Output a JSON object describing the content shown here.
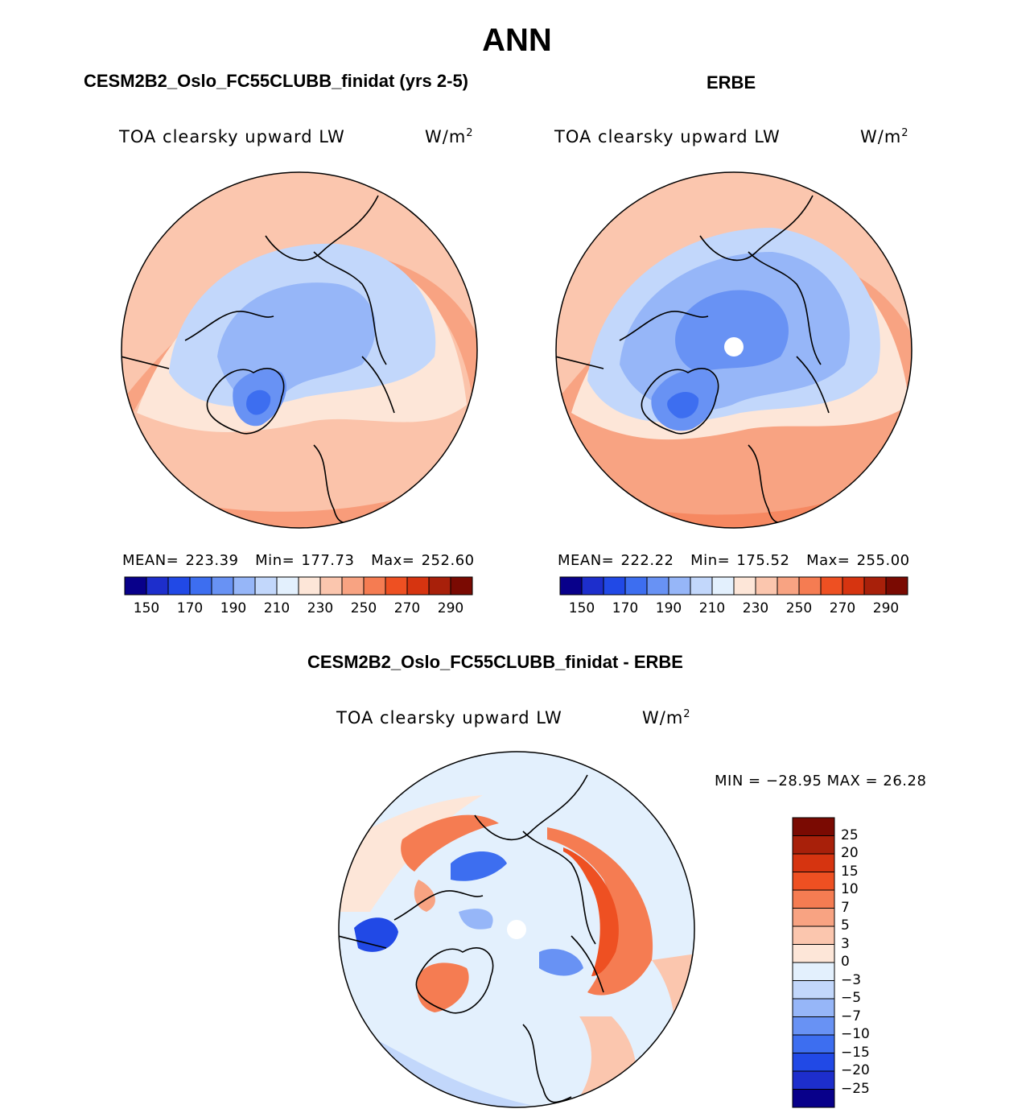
{
  "figure": {
    "title": "ANN",
    "variable": "TOA clearsky upward LW",
    "unit_base": "W/m",
    "unit_exp": "2",
    "colors": {
      "abs_scale": [
        "#08008a",
        "#1d2ecc",
        "#2149e6",
        "#3d6ef0",
        "#6892f4",
        "#96b6f8",
        "#c2d7fb",
        "#e3f0fd",
        "#fde6d8",
        "#fbc6ae",
        "#f8a382",
        "#f57c52",
        "#ee5022",
        "#d63410",
        "#a8200a",
        "#7a0a02"
      ],
      "diff_scale": [
        "#7a0a02",
        "#a8200a",
        "#d63410",
        "#ee5022",
        "#f57c52",
        "#f8a382",
        "#fbc6ae",
        "#fde6d8",
        "#e3f0fd",
        "#c2d7fb",
        "#96b6f8",
        "#6892f4",
        "#3d6ef0",
        "#2149e6",
        "#1d2ecc",
        "#08008a"
      ]
    }
  },
  "panels": {
    "model": {
      "title": "CESM2B2_Oslo_FC55CLUBB_finidat (yrs 2-5)",
      "mean_label": "MEAN=",
      "mean": "223.39",
      "min_label": "Min=",
      "min": "177.73",
      "max_label": "Max=",
      "max": "252.60"
    },
    "obs": {
      "title": "ERBE",
      "mean_label": "MEAN=",
      "mean": "222.22",
      "min_label": "Min=",
      "min": "175.52",
      "max_label": "Max=",
      "max": "255.00"
    },
    "diff": {
      "title": "CESM2B2_Oslo_FC55CLUBB_finidat - ERBE",
      "minmax": "MIN = −28.95 MAX =  26.28"
    }
  },
  "chart_data": [
    {
      "type": "heatmap",
      "projection": "north polar stereographic",
      "title": "CESM2B2_Oslo_FC55CLUBB_finidat (yrs 2-5)",
      "variable": "TOA clearsky upward LW",
      "units": "W/m2",
      "mean": 223.39,
      "min": 177.73,
      "max": 252.6,
      "colorbar_levels": [
        150,
        160,
        170,
        180,
        190,
        200,
        210,
        220,
        230,
        240,
        250,
        260,
        270,
        280,
        290
      ],
      "colorbar_labels": [
        "150",
        "170",
        "190",
        "210",
        "230",
        "250",
        "270",
        "290"
      ]
    },
    {
      "type": "heatmap",
      "projection": "north polar stereographic",
      "title": "ERBE",
      "variable": "TOA clearsky upward LW",
      "units": "W/m2",
      "mean": 222.22,
      "min": 175.52,
      "max": 255.0,
      "colorbar_levels": [
        150,
        160,
        170,
        180,
        190,
        200,
        210,
        220,
        230,
        240,
        250,
        260,
        270,
        280,
        290
      ],
      "colorbar_labels": [
        "150",
        "170",
        "190",
        "210",
        "230",
        "250",
        "270",
        "290"
      ]
    },
    {
      "type": "heatmap",
      "projection": "north polar stereographic",
      "title": "CESM2B2_Oslo_FC55CLUBB_finidat - ERBE",
      "variable": "TOA clearsky upward LW",
      "units": "W/m2",
      "min": -28.95,
      "max": 26.28,
      "colorbar_labels": [
        "25",
        "20",
        "15",
        "10",
        "7",
        "5",
        "3",
        "0",
        "−3",
        "−5",
        "−7",
        "−10",
        "−15",
        "−20",
        "−25"
      ]
    }
  ]
}
